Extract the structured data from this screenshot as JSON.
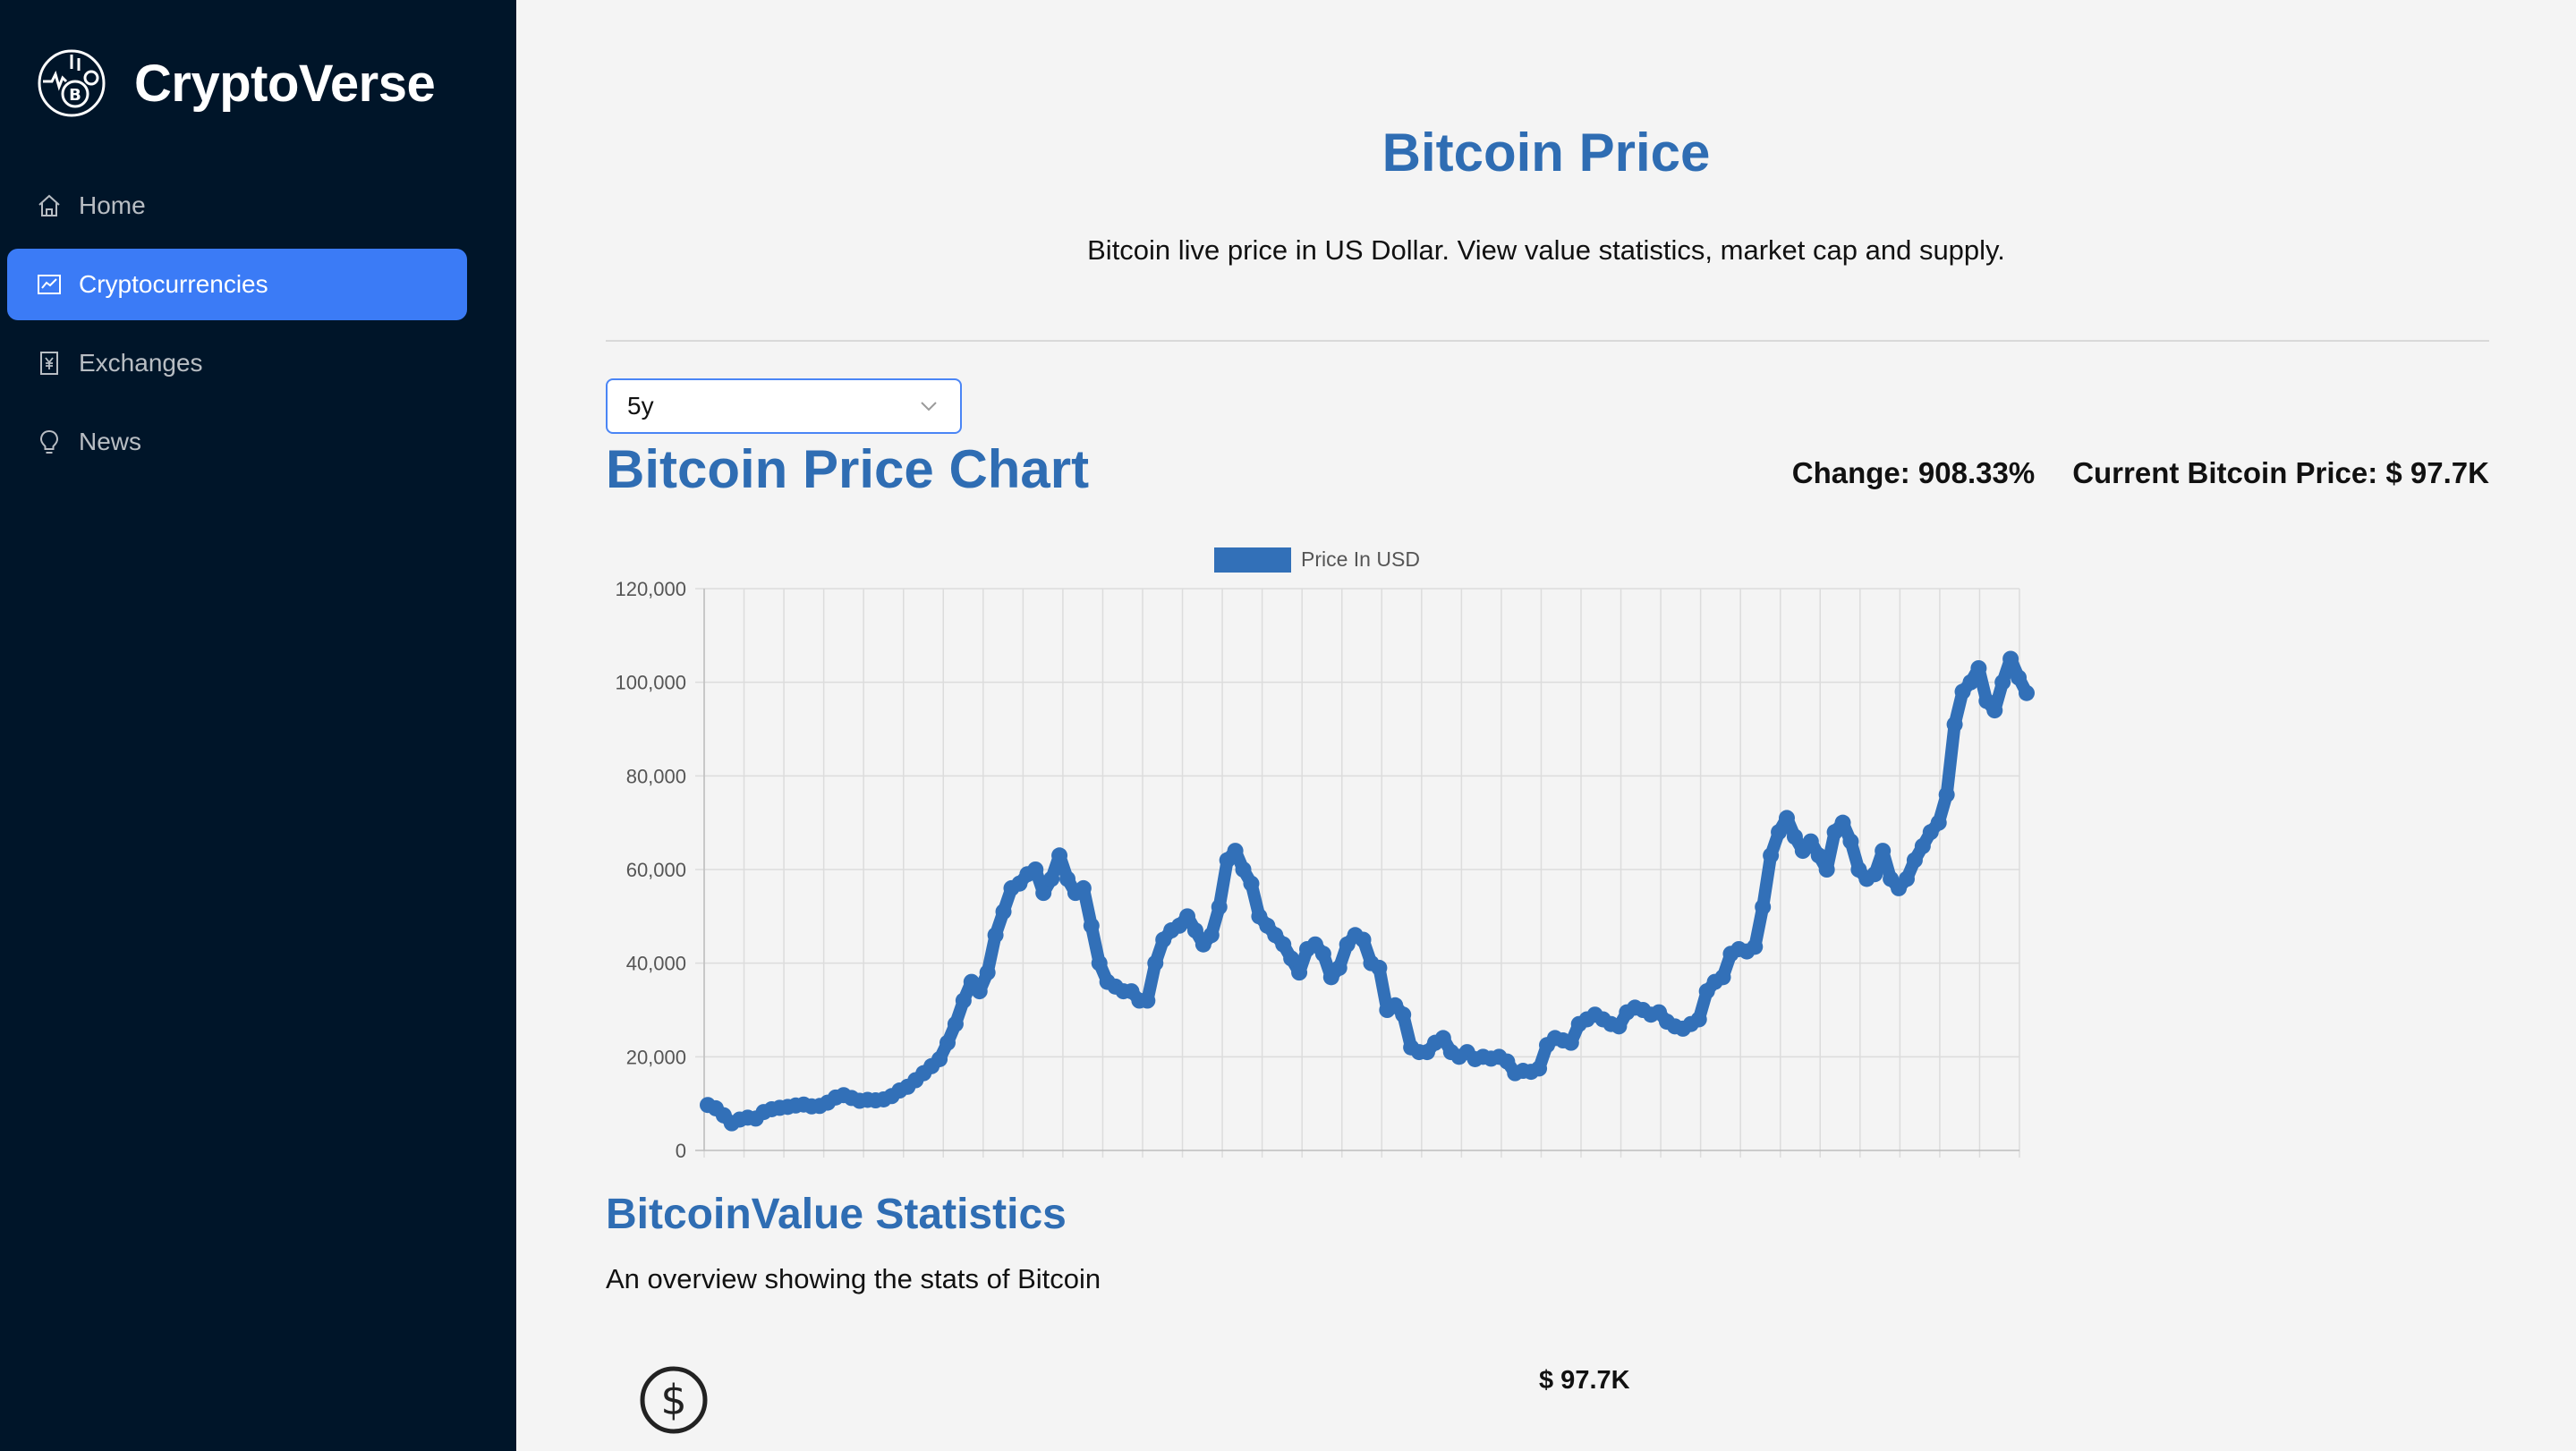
{
  "app": {
    "name": "CryptoVerse",
    "logo_icon": "bitcoin-logo-icon"
  },
  "sidebar": {
    "items": [
      {
        "label": "Home",
        "icon": "home-icon",
        "active": false
      },
      {
        "label": "Cryptocurrencies",
        "icon": "fund-icon",
        "active": true
      },
      {
        "label": "Exchanges",
        "icon": "money-collect-icon",
        "active": false
      },
      {
        "label": "News",
        "icon": "bulb-icon",
        "active": false
      }
    ],
    "active_color": "#3b7bf6",
    "background": "#001529"
  },
  "header": {
    "title": "Bitcoin Price",
    "subtitle": "Bitcoin live price in US Dollar. View value statistics, market cap and supply."
  },
  "period_select": {
    "value": "5y"
  },
  "chart_section": {
    "title": "Bitcoin Price Chart",
    "change": "Change: 908.33%",
    "current_price": "Current Bitcoin Price: $ 97.7K"
  },
  "chart_data": {
    "type": "line",
    "legend": "Price In USD",
    "legend_position": "top-center",
    "series_color": "#3270b8",
    "grid": true,
    "ylim": [
      0,
      120000
    ],
    "yticks": [
      "0",
      "20,000",
      "40,000",
      "60,000",
      "80,000",
      "100,000",
      "120,000"
    ],
    "x_gridlines": 33,
    "xlabel": "",
    "ylabel": "",
    "values": [
      9700,
      9000,
      7500,
      5800,
      6600,
      7000,
      6800,
      8200,
      8800,
      9100,
      9300,
      9600,
      9800,
      9400,
      9500,
      10200,
      11300,
      11800,
      11200,
      10600,
      10800,
      10700,
      10900,
      11600,
      12800,
      13600,
      15000,
      16500,
      18000,
      19500,
      23000,
      27000,
      32000,
      36000,
      34000,
      38000,
      46000,
      51000,
      56000,
      57000,
      59000,
      60000,
      55000,
      58000,
      63000,
      58000,
      55000,
      56000,
      48000,
      40000,
      36000,
      35000,
      34000,
      34000,
      32000,
      32000,
      40000,
      45000,
      47000,
      48000,
      50000,
      47000,
      44000,
      46000,
      52000,
      62000,
      64000,
      60000,
      57000,
      50000,
      48000,
      46000,
      44000,
      41000,
      38000,
      43000,
      44000,
      42000,
      37000,
      39000,
      44000,
      46000,
      45000,
      40000,
      39000,
      30000,
      31000,
      29000,
      22000,
      21000,
      21000,
      23000,
      24000,
      21000,
      20000,
      21000,
      19500,
      20000,
      19600,
      20000,
      19000,
      16500,
      17000,
      16800,
      17500,
      22500,
      24000,
      23500,
      23000,
      27000,
      28000,
      29000,
      28000,
      27000,
      26500,
      29500,
      30500,
      30000,
      29000,
      29500,
      27500,
      26500,
      26000,
      27000,
      28000,
      34000,
      36000,
      37000,
      42000,
      43000,
      42500,
      43500,
      52000,
      63000,
      68000,
      71000,
      67000,
      64000,
      66000,
      63000,
      60000,
      68000,
      70000,
      66000,
      60000,
      58000,
      59000,
      64000,
      58000,
      56000,
      58000,
      62000,
      65000,
      68000,
      70000,
      76000,
      91000,
      98000,
      100000,
      103000,
      96000,
      94000,
      100000,
      105000,
      101000,
      97700
    ]
  },
  "stats_section": {
    "title": "BitcoinValue Statistics",
    "subtitle": "An overview showing the stats of Bitcoin",
    "rows": [
      {
        "icon": "dollar-circle-icon",
        "value": "$ 97.7K"
      }
    ]
  }
}
